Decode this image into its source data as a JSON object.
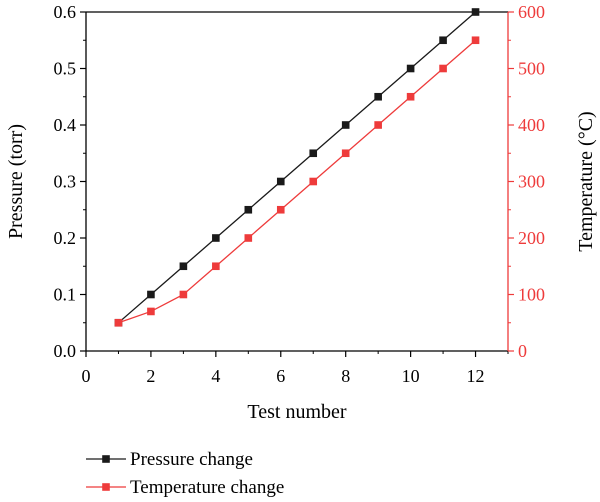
{
  "chart_data": {
    "type": "line",
    "xlabel": "Test number",
    "ylabel_left": "Pressure (torr)",
    "ylabel_right": "Temperature (°C)",
    "xlim": [
      0,
      13
    ],
    "xticks": [
      0,
      2,
      4,
      6,
      8,
      10,
      12
    ],
    "ylim_left": [
      0,
      0.6
    ],
    "yticks_left": [
      "0.0",
      "0.1",
      "0.2",
      "0.3",
      "0.4",
      "0.5",
      "0.6"
    ],
    "ylim_right": [
      0,
      600
    ],
    "yticks_right": [
      "0",
      "100",
      "200",
      "300",
      "400",
      "500",
      "600"
    ],
    "grid": false,
    "legend_position": "bottom-left",
    "series": [
      {
        "name": "Pressure change",
        "axis": "left",
        "color": "#1a1a1a",
        "marker": "square",
        "x": [
          1,
          2,
          3,
          4,
          5,
          6,
          7,
          8,
          9,
          10,
          11,
          12
        ],
        "y": [
          0.05,
          0.1,
          0.15,
          0.2,
          0.25,
          0.3,
          0.35,
          0.4,
          0.45,
          0.5,
          0.55,
          0.6
        ]
      },
      {
        "name": "Temperature change",
        "axis": "right",
        "color": "#ee3b3b",
        "marker": "square",
        "x": [
          1,
          2,
          3,
          4,
          5,
          6,
          7,
          8,
          9,
          10,
          11,
          12
        ],
        "y": [
          50,
          70,
          100,
          150,
          200,
          250,
          300,
          350,
          400,
          450,
          500,
          550
        ]
      }
    ]
  }
}
